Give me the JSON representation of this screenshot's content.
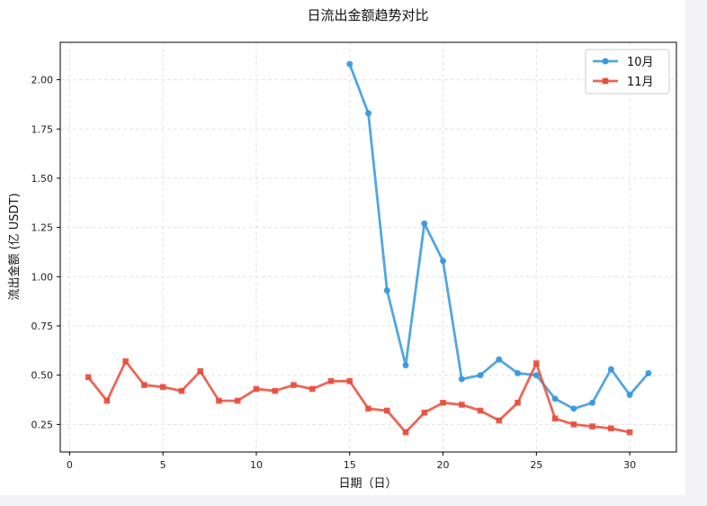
{
  "chart_data": {
    "type": "line",
    "title": "日流出金额趋势对比",
    "xlabel": "日期（日）",
    "ylabel": "流出金额 (亿 USDT)",
    "xlim": [
      -0.5,
      32.5
    ],
    "ylim": [
      0.11,
      2.19
    ],
    "xticks": [
      0,
      5,
      10,
      15,
      20,
      25,
      30
    ],
    "yticks": [
      0.25,
      0.5,
      0.75,
      1.0,
      1.25,
      1.5,
      1.75,
      2.0
    ],
    "ytick_labels": [
      "0.25",
      "0.50",
      "0.75",
      "1.00",
      "1.25",
      "1.50",
      "1.75",
      "2.00"
    ],
    "grid": true,
    "legend_position": "top-right",
    "series": [
      {
        "name": "10月",
        "color": "#3498db",
        "marker": "circle",
        "x": [
          15,
          16,
          17,
          18,
          19,
          20,
          21,
          22,
          23,
          24,
          25,
          26,
          27,
          28,
          29,
          30,
          31
        ],
        "values": [
          2.08,
          1.83,
          0.93,
          0.55,
          1.27,
          1.08,
          0.48,
          0.5,
          0.58,
          0.51,
          0.5,
          0.38,
          0.33,
          0.36,
          0.53,
          0.4,
          0.51
        ]
      },
      {
        "name": "11月",
        "color": "#e74c3c",
        "marker": "square",
        "x": [
          1,
          2,
          3,
          4,
          5,
          6,
          7,
          8,
          9,
          10,
          11,
          12,
          13,
          14,
          15,
          16,
          17,
          18,
          19,
          20,
          21,
          22,
          23,
          24,
          25,
          26,
          27,
          28,
          29,
          30
        ],
        "values": [
          0.49,
          0.37,
          0.57,
          0.45,
          0.44,
          0.42,
          0.52,
          0.37,
          0.37,
          0.43,
          0.42,
          0.45,
          0.43,
          0.47,
          0.47,
          0.33,
          0.32,
          0.21,
          0.31,
          0.36,
          0.35,
          0.32,
          0.27,
          0.36,
          0.56,
          0.28,
          0.25,
          0.24,
          0.23,
          0.21
        ]
      }
    ]
  }
}
